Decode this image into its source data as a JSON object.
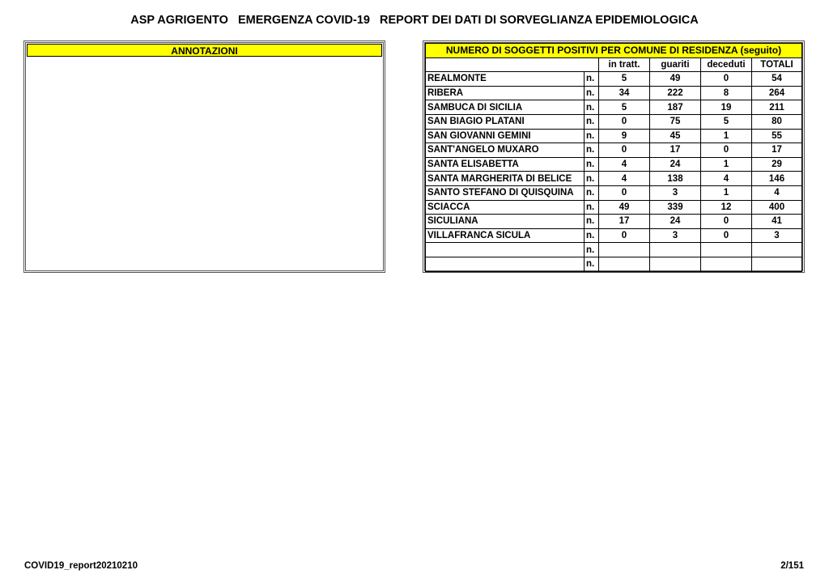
{
  "title": "ASP AGRIGENTO   EMERGENZA COVID-19   REPORT DEI DATI DI SORVEGLIANZA EPIDEMIOLOGICA",
  "annotations": {
    "header": "ANNOTAZIONI"
  },
  "table": {
    "header": "NUMERO DI SOGGETTI POSITIVI PER COMUNE DI RESIDENZA (seguito)",
    "columns": [
      "in tratt.",
      "guariti",
      "deceduti",
      "TOTALI"
    ],
    "unit": "n.",
    "rows": [
      {
        "name": "REALMONTE",
        "values": [
          "5",
          "49",
          "0",
          "54"
        ]
      },
      {
        "name": "RIBERA",
        "values": [
          "34",
          "222",
          "8",
          "264"
        ]
      },
      {
        "name": "SAMBUCA DI SICILIA",
        "values": [
          "5",
          "187",
          "19",
          "211"
        ]
      },
      {
        "name": "SAN BIAGIO PLATANI",
        "values": [
          "0",
          "75",
          "5",
          "80"
        ]
      },
      {
        "name": "SAN GIOVANNI GEMINI",
        "values": [
          "9",
          "45",
          "1",
          "55"
        ]
      },
      {
        "name": "SANT'ANGELO MUXARO",
        "values": [
          "0",
          "17",
          "0",
          "17"
        ]
      },
      {
        "name": "SANTA ELISABETTA",
        "values": [
          "4",
          "24",
          "1",
          "29"
        ]
      },
      {
        "name": "SANTA MARGHERITA DI BELICE",
        "values": [
          "4",
          "138",
          "4",
          "146"
        ]
      },
      {
        "name": "SANTO STEFANO DI QUISQUINA",
        "values": [
          "0",
          "3",
          "1",
          "4"
        ]
      },
      {
        "name": "SCIACCA",
        "values": [
          "49",
          "339",
          "12",
          "400"
        ]
      },
      {
        "name": "SICULIANA",
        "values": [
          "17",
          "24",
          "0",
          "41"
        ]
      },
      {
        "name": "VILLAFRANCA SICULA",
        "values": [
          "0",
          "3",
          "0",
          "3"
        ]
      },
      {
        "name": "",
        "values": [
          "",
          "",
          "",
          ""
        ]
      },
      {
        "name": "",
        "values": [
          "",
          "",
          "",
          ""
        ]
      }
    ]
  },
  "footer": {
    "left": "COVID19_report20210210",
    "right": "2/151"
  }
}
